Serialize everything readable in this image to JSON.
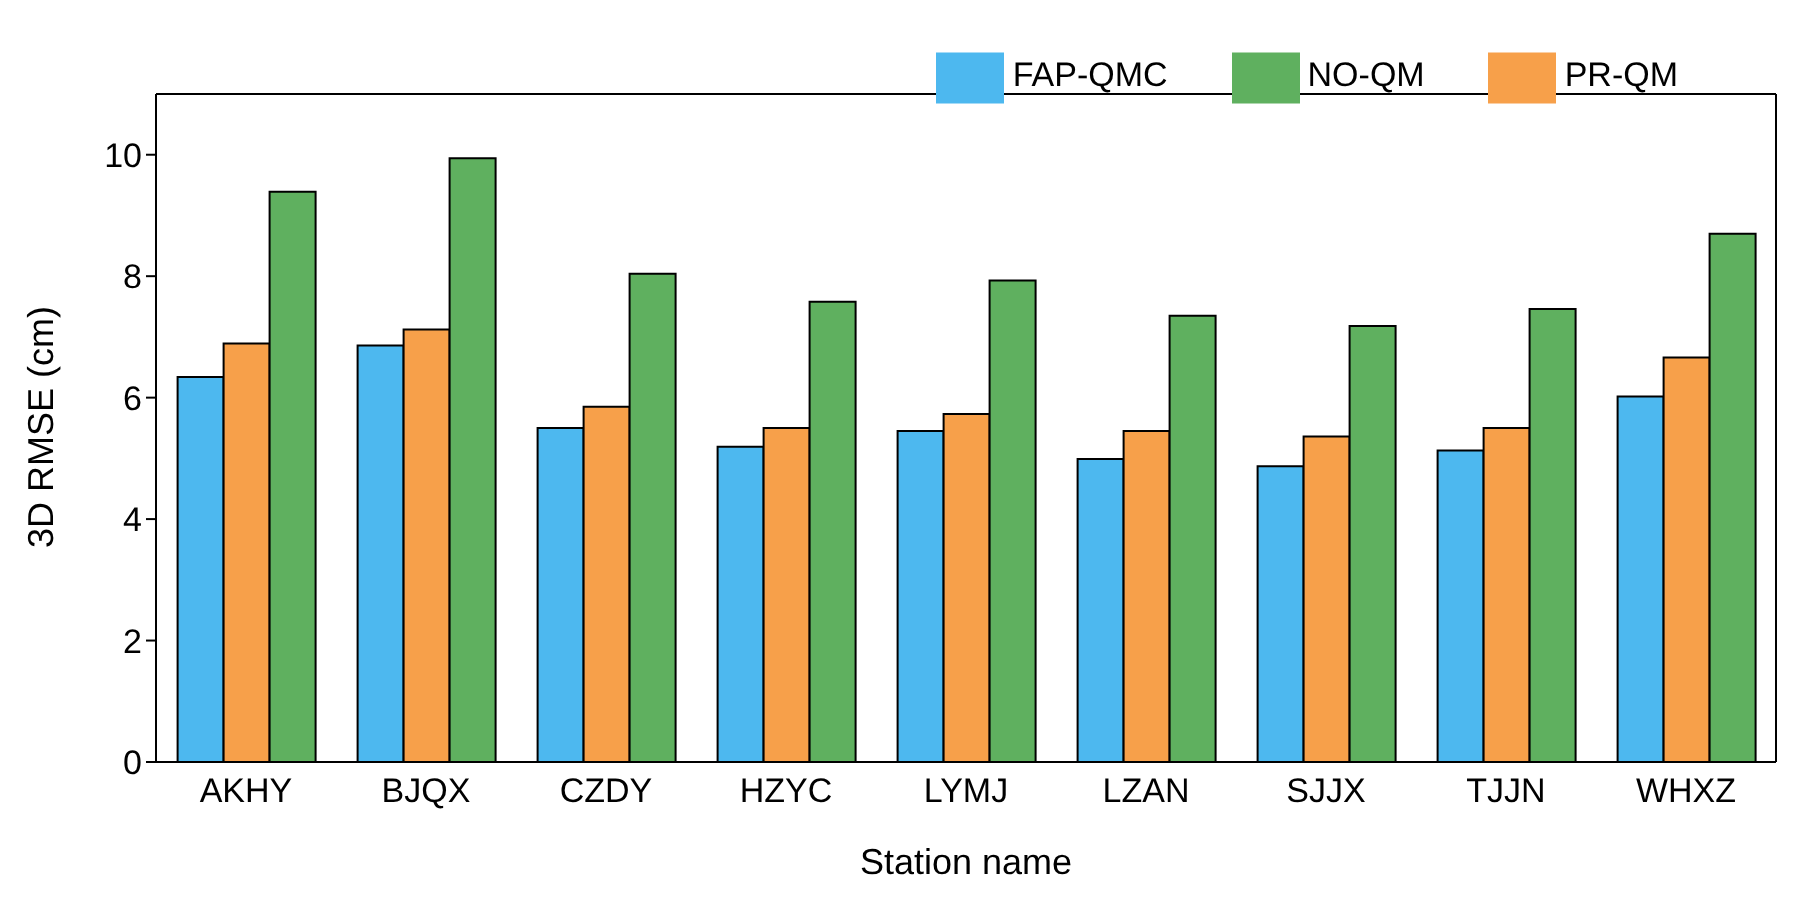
{
  "chart_data": {
    "type": "bar",
    "xlabel": "Station name",
    "ylabel": "3D RMSE (cm)",
    "categories": [
      "AKHY",
      "BJQX",
      "CZDY",
      "HZYC",
      "LYMJ",
      "LZAN",
      "SJJX",
      "TJJN",
      "WHXZ"
    ],
    "series": [
      {
        "name": "FAP-QMC",
        "color": "#4db8ef",
        "values": [
          6.34,
          6.86,
          5.5,
          5.19,
          5.45,
          4.99,
          4.87,
          5.13,
          6.02
        ]
      },
      {
        "name": "PR-QM",
        "color": "#f7a04a",
        "values": [
          6.89,
          7.12,
          5.85,
          5.5,
          5.73,
          5.45,
          5.36,
          5.5,
          6.66
        ]
      },
      {
        "name": "NO-QM",
        "color": "#5fb05f",
        "values": [
          9.39,
          9.94,
          8.04,
          7.58,
          7.93,
          7.35,
          7.18,
          7.46,
          8.7
        ]
      }
    ],
    "ylim": [
      0,
      11
    ],
    "yticks": [
      0,
      2,
      4,
      6,
      8,
      10
    ],
    "grid": false,
    "legend": "top right"
  }
}
